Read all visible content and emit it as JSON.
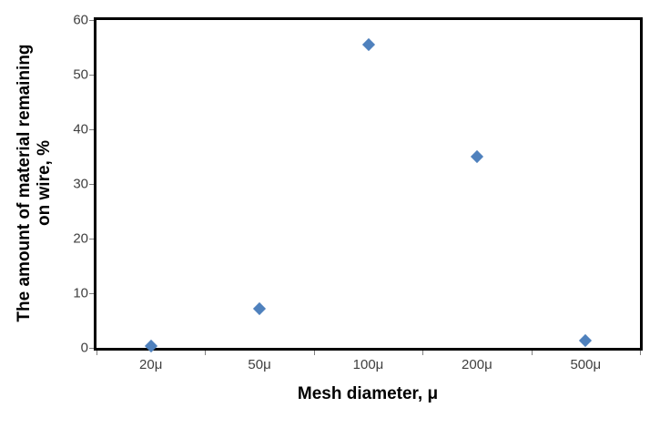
{
  "chart_data": {
    "type": "scatter",
    "title": "",
    "categories": [
      "20μ",
      "50μ",
      "100μ",
      "200μ",
      "500μ"
    ],
    "values": [
      0.3,
      7.2,
      55.5,
      35.0,
      1.3
    ],
    "series_name": "The amount of material remaining on wire",
    "xlabel": "Mesh diameter, μ",
    "ylabel": "The amount of material remaining on wire,  %",
    "ylabel_line1": "The amount of material remaining",
    "ylabel_line2": "on wire,  %",
    "ylim": [
      0,
      60
    ],
    "yticks": [
      0,
      10,
      20,
      30,
      40,
      50,
      60
    ],
    "grid": false,
    "legend_position": "none",
    "marker_shape": "diamond",
    "marker_color": "#4F81BD",
    "plot_border_color": "#000000",
    "tick_mark_color": "#7f7f7f",
    "tick_label_color": "#3f3f3f",
    "background_color": "#ffffff"
  }
}
